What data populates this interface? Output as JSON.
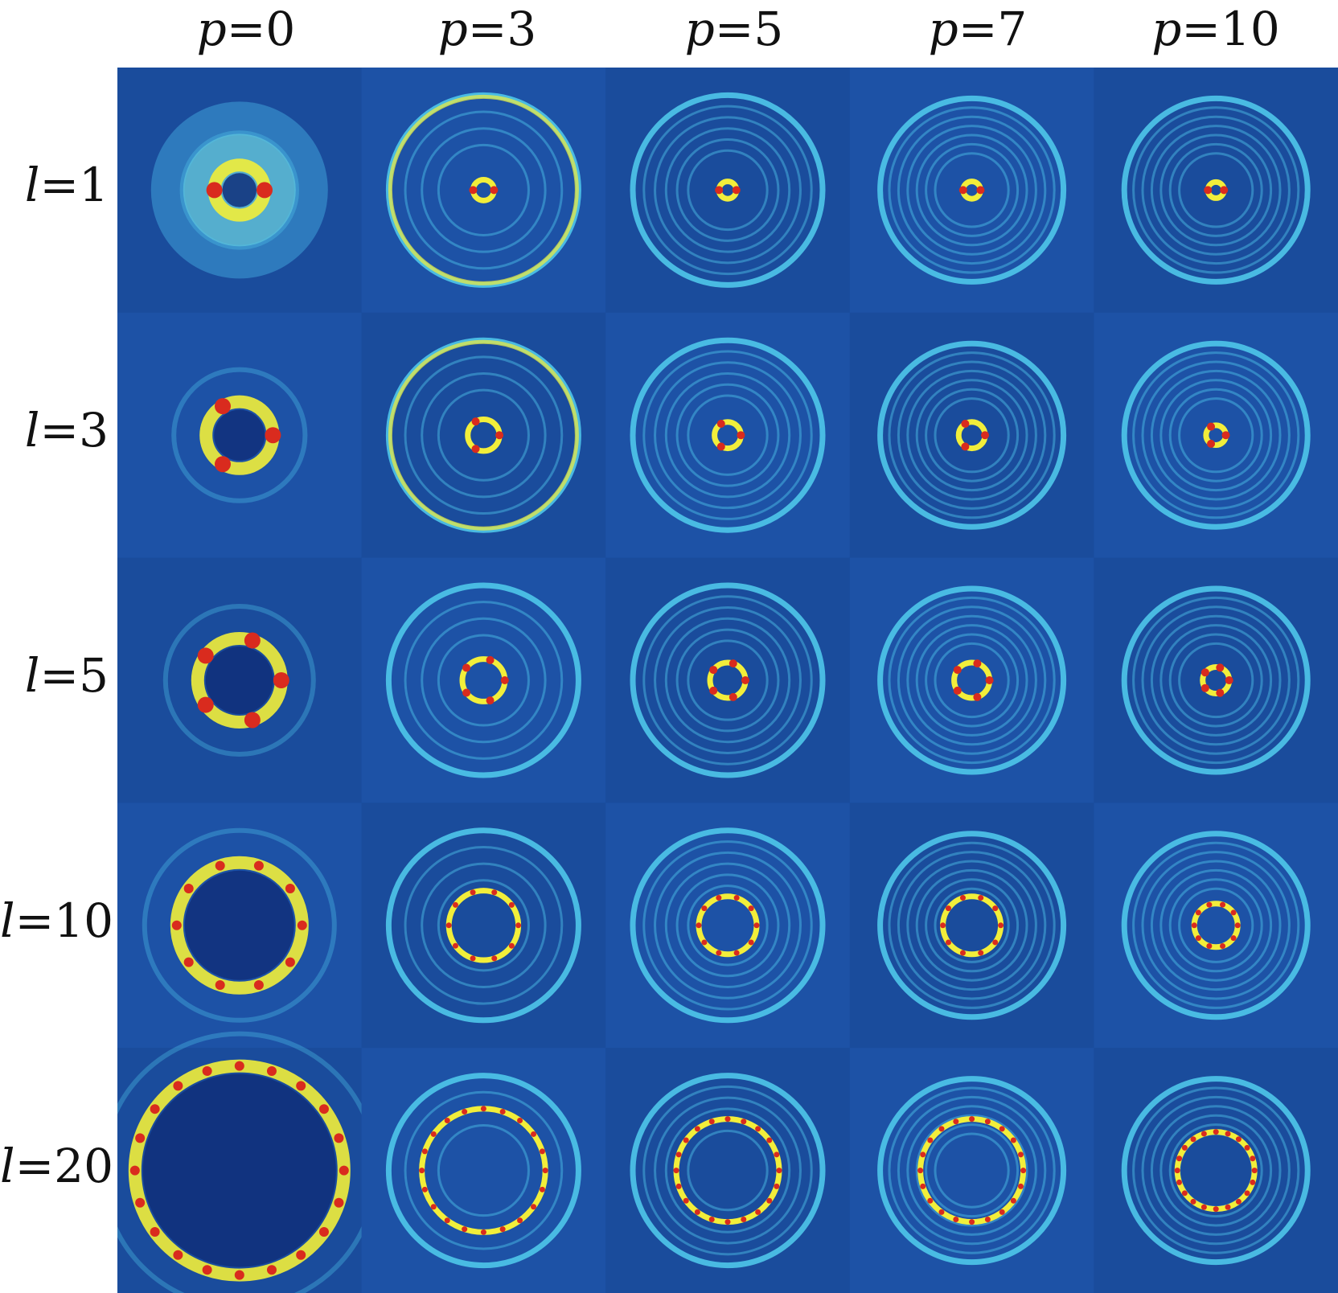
{
  "columns": [
    {
      "var": "p",
      "value": "0"
    },
    {
      "var": "p",
      "value": "3"
    },
    {
      "var": "p",
      "value": "5"
    },
    {
      "var": "p",
      "value": "7"
    },
    {
      "var": "p",
      "value": "10"
    }
  ],
  "rows": [
    {
      "var": "l",
      "value": "1"
    },
    {
      "var": "l",
      "value": "3"
    },
    {
      "var": "l",
      "value": "5"
    },
    {
      "var": "l",
      "value": "10"
    },
    {
      "var": "l",
      "value": "20"
    }
  ],
  "colors": {
    "background": "#1c4fa0",
    "cyan": "#4fc6ea",
    "yellow": "#f2ee3a",
    "red": "#d92b1e",
    "dark": "#102f7a"
  }
}
